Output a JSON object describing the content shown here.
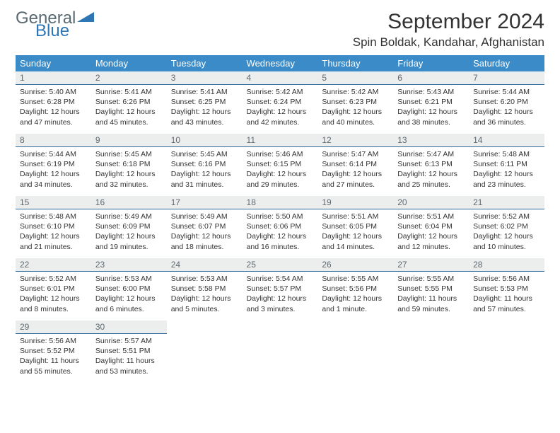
{
  "logo": {
    "text1": "General",
    "text2": "Blue"
  },
  "title": "September 2024",
  "subtitle": "Spin Boldak, Kandahar, Afghanistan",
  "colors": {
    "header_bg": "#3b8bc8",
    "header_text": "#ffffff",
    "dayhead_bg": "#eceeee",
    "dayhead_text": "#5d6a70",
    "dayhead_border": "#2f6a9a",
    "body_text": "#333333",
    "logo_gray": "#5a6a72",
    "logo_blue": "#2f77b4"
  },
  "weekdays": [
    "Sunday",
    "Monday",
    "Tuesday",
    "Wednesday",
    "Thursday",
    "Friday",
    "Saturday"
  ],
  "days": [
    {
      "n": "1",
      "sr": "5:40 AM",
      "ss": "6:28 PM",
      "dl": "12 hours and 47 minutes."
    },
    {
      "n": "2",
      "sr": "5:41 AM",
      "ss": "6:26 PM",
      "dl": "12 hours and 45 minutes."
    },
    {
      "n": "3",
      "sr": "5:41 AM",
      "ss": "6:25 PM",
      "dl": "12 hours and 43 minutes."
    },
    {
      "n": "4",
      "sr": "5:42 AM",
      "ss": "6:24 PM",
      "dl": "12 hours and 42 minutes."
    },
    {
      "n": "5",
      "sr": "5:42 AM",
      "ss": "6:23 PM",
      "dl": "12 hours and 40 minutes."
    },
    {
      "n": "6",
      "sr": "5:43 AM",
      "ss": "6:21 PM",
      "dl": "12 hours and 38 minutes."
    },
    {
      "n": "7",
      "sr": "5:44 AM",
      "ss": "6:20 PM",
      "dl": "12 hours and 36 minutes."
    },
    {
      "n": "8",
      "sr": "5:44 AM",
      "ss": "6:19 PM",
      "dl": "12 hours and 34 minutes."
    },
    {
      "n": "9",
      "sr": "5:45 AM",
      "ss": "6:18 PM",
      "dl": "12 hours and 32 minutes."
    },
    {
      "n": "10",
      "sr": "5:45 AM",
      "ss": "6:16 PM",
      "dl": "12 hours and 31 minutes."
    },
    {
      "n": "11",
      "sr": "5:46 AM",
      "ss": "6:15 PM",
      "dl": "12 hours and 29 minutes."
    },
    {
      "n": "12",
      "sr": "5:47 AM",
      "ss": "6:14 PM",
      "dl": "12 hours and 27 minutes."
    },
    {
      "n": "13",
      "sr": "5:47 AM",
      "ss": "6:13 PM",
      "dl": "12 hours and 25 minutes."
    },
    {
      "n": "14",
      "sr": "5:48 AM",
      "ss": "6:11 PM",
      "dl": "12 hours and 23 minutes."
    },
    {
      "n": "15",
      "sr": "5:48 AM",
      "ss": "6:10 PM",
      "dl": "12 hours and 21 minutes."
    },
    {
      "n": "16",
      "sr": "5:49 AM",
      "ss": "6:09 PM",
      "dl": "12 hours and 19 minutes."
    },
    {
      "n": "17",
      "sr": "5:49 AM",
      "ss": "6:07 PM",
      "dl": "12 hours and 18 minutes."
    },
    {
      "n": "18",
      "sr": "5:50 AM",
      "ss": "6:06 PM",
      "dl": "12 hours and 16 minutes."
    },
    {
      "n": "19",
      "sr": "5:51 AM",
      "ss": "6:05 PM",
      "dl": "12 hours and 14 minutes."
    },
    {
      "n": "20",
      "sr": "5:51 AM",
      "ss": "6:04 PM",
      "dl": "12 hours and 12 minutes."
    },
    {
      "n": "21",
      "sr": "5:52 AM",
      "ss": "6:02 PM",
      "dl": "12 hours and 10 minutes."
    },
    {
      "n": "22",
      "sr": "5:52 AM",
      "ss": "6:01 PM",
      "dl": "12 hours and 8 minutes."
    },
    {
      "n": "23",
      "sr": "5:53 AM",
      "ss": "6:00 PM",
      "dl": "12 hours and 6 minutes."
    },
    {
      "n": "24",
      "sr": "5:53 AM",
      "ss": "5:58 PM",
      "dl": "12 hours and 5 minutes."
    },
    {
      "n": "25",
      "sr": "5:54 AM",
      "ss": "5:57 PM",
      "dl": "12 hours and 3 minutes."
    },
    {
      "n": "26",
      "sr": "5:55 AM",
      "ss": "5:56 PM",
      "dl": "12 hours and 1 minute."
    },
    {
      "n": "27",
      "sr": "5:55 AM",
      "ss": "5:55 PM",
      "dl": "11 hours and 59 minutes."
    },
    {
      "n": "28",
      "sr": "5:56 AM",
      "ss": "5:53 PM",
      "dl": "11 hours and 57 minutes."
    },
    {
      "n": "29",
      "sr": "5:56 AM",
      "ss": "5:52 PM",
      "dl": "11 hours and 55 minutes."
    },
    {
      "n": "30",
      "sr": "5:57 AM",
      "ss": "5:51 PM",
      "dl": "11 hours and 53 minutes."
    }
  ],
  "labels": {
    "sunrise": "Sunrise:",
    "sunset": "Sunset:",
    "daylight": "Daylight:"
  }
}
